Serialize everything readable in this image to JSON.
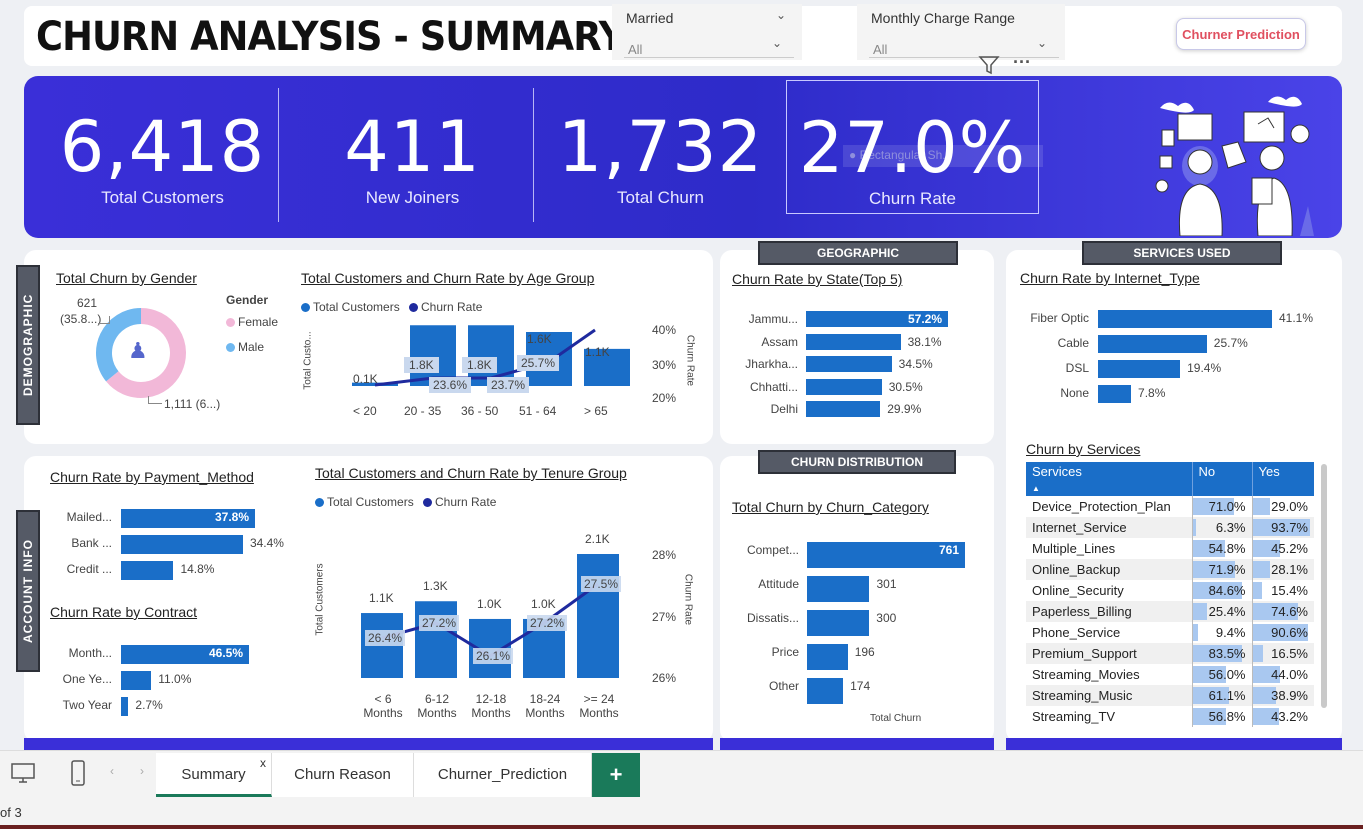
{
  "header": {
    "title": "CHURN ANALYSIS - SUMMARY",
    "slicers": [
      {
        "label": "Married",
        "value": "All"
      },
      {
        "label": "Monthly Charge Range",
        "value": "All"
      }
    ],
    "prediction_button": "Churner Prediction",
    "toolbar_more": "···"
  },
  "kpis": [
    {
      "value": "6,418",
      "label": "Total Customers"
    },
    {
      "value": "411",
      "label": "New Joiners"
    },
    {
      "value": "1,732",
      "label": "Total Churn"
    },
    {
      "value": "27.0%",
      "label": "Churn Rate"
    }
  ],
  "ghost_text": "Rectangular Sh...",
  "sections": {
    "demographic": "DEMOGRAPHIC",
    "account_info": "ACCOUNT INFO",
    "geographic": "GEOGRAPHIC",
    "services_used": "SERVICES USED",
    "churn_distribution": "CHURN DISTRIBUTION"
  },
  "gender_chart": {
    "title": "Total Churn by Gender",
    "legend_title": "Gender",
    "series": [
      {
        "name": "Female",
        "value": 1111,
        "label": "1,111 (6...)",
        "color": "#f2b8d8"
      },
      {
        "name": "Male",
        "value": 621,
        "label_line1": "621",
        "label_line2": "(35.8...)",
        "color": "#6fb8f0"
      }
    ]
  },
  "age_chart": {
    "title": "Total Customers and Churn Rate by Age Group",
    "legend": [
      "Total Customers",
      "Churn Rate"
    ],
    "ylabel_left": "Total Custo...",
    "ylabel_right": "Churn Rate",
    "right_ticks": [
      "40%",
      "30%",
      "20%"
    ],
    "categories": [
      "< 20",
      "20 - 35",
      "36 - 50",
      "51 - 64",
      "> 65"
    ],
    "bars": [
      0.1,
      1.8,
      1.8,
      1.6,
      1.1
    ],
    "bar_labels": [
      "0.1K",
      "1.8K",
      "1.8K",
      "1.6K",
      "1.1K"
    ],
    "rate_labels": [
      "",
      "23.6%",
      "23.7%",
      "25.7%",
      ""
    ]
  },
  "state_chart": {
    "title": "Churn Rate by State(Top 5)",
    "categories": [
      "Jammu...",
      "Assam",
      "Jharkha...",
      "Chhatti...",
      "Delhi"
    ],
    "values": [
      57.2,
      38.1,
      34.5,
      30.5,
      29.9
    ],
    "labels": [
      "57.2%",
      "38.1%",
      "34.5%",
      "30.5%",
      "29.9%"
    ]
  },
  "internet_chart": {
    "title": "Churn Rate by Internet_Type",
    "categories": [
      "Fiber Optic",
      "Cable",
      "DSL",
      "None"
    ],
    "values": [
      41.1,
      25.7,
      19.4,
      7.8
    ],
    "labels": [
      "41.1%",
      "25.7%",
      "19.4%",
      "7.8%"
    ]
  },
  "payment_chart": {
    "title": "Churn Rate by Payment_Method",
    "categories": [
      "Mailed...",
      "Bank ...",
      "Credit ..."
    ],
    "values": [
      37.8,
      34.4,
      14.8
    ],
    "labels": [
      "37.8%",
      "34.4%",
      "14.8%"
    ]
  },
  "contract_chart": {
    "title": "Churn Rate by Contract",
    "categories": [
      "Month...",
      "One Ye...",
      "Two Year"
    ],
    "values": [
      46.5,
      11.0,
      2.7
    ],
    "labels": [
      "46.5%",
      "11.0%",
      "2.7%"
    ]
  },
  "tenure_chart": {
    "title": "Total Customers and Churn Rate by Tenure Group",
    "legend": [
      "Total Customers",
      "Churn Rate"
    ],
    "ylabel_left": "Total Customers",
    "ylabel_right": "Churn Rate",
    "right_ticks": [
      "28%",
      "27%",
      "26%"
    ],
    "categories": [
      [
        "< 6",
        "Months"
      ],
      [
        "6-12",
        "Months"
      ],
      [
        "12-18",
        "Months"
      ],
      [
        "18-24",
        "Months"
      ],
      [
        ">= 24",
        "Months"
      ]
    ],
    "bars": [
      1.1,
      1.3,
      1.0,
      1.0,
      2.1
    ],
    "bar_labels": [
      "1.1K",
      "1.3K",
      "1.0K",
      "1.0K",
      "2.1K"
    ],
    "rate_labels": [
      "26.4%",
      "27.2%",
      "26.1%",
      "27.2%",
      "27.5%"
    ]
  },
  "category_chart": {
    "title": "Total Churn by Churn_Category",
    "xlabel": "Total Churn",
    "categories": [
      "Compet...",
      "Attitude",
      "Dissatis...",
      "Price",
      "Other"
    ],
    "values": [
      761,
      301,
      300,
      196,
      174
    ],
    "labels": [
      "761",
      "301",
      "300",
      "196",
      "174"
    ]
  },
  "services_table": {
    "title": "Churn by Services",
    "headers": [
      "Services",
      "No",
      "Yes"
    ],
    "rows": [
      {
        "name": "Device_Protection_Plan",
        "no": "71.0%",
        "yes": "29.0%",
        "no_v": 71.0,
        "yes_v": 29.0
      },
      {
        "name": "Internet_Service",
        "no": "6.3%",
        "yes": "93.7%",
        "no_v": 6.3,
        "yes_v": 93.7
      },
      {
        "name": "Multiple_Lines",
        "no": "54.8%",
        "yes": "45.2%",
        "no_v": 54.8,
        "yes_v": 45.2
      },
      {
        "name": "Online_Backup",
        "no": "71.9%",
        "yes": "28.1%",
        "no_v": 71.9,
        "yes_v": 28.1
      },
      {
        "name": "Online_Security",
        "no": "84.6%",
        "yes": "15.4%",
        "no_v": 84.6,
        "yes_v": 15.4
      },
      {
        "name": "Paperless_Billing",
        "no": "25.4%",
        "yes": "74.6%",
        "no_v": 25.4,
        "yes_v": 74.6
      },
      {
        "name": "Phone_Service",
        "no": "9.4%",
        "yes": "90.6%",
        "no_v": 9.4,
        "yes_v": 90.6
      },
      {
        "name": "Premium_Support",
        "no": "83.5%",
        "yes": "16.5%",
        "no_v": 83.5,
        "yes_v": 16.5
      },
      {
        "name": "Streaming_Movies",
        "no": "56.0%",
        "yes": "44.0%",
        "no_v": 56.0,
        "yes_v": 44.0
      },
      {
        "name": "Streaming_Music",
        "no": "61.1%",
        "yes": "38.9%",
        "no_v": 61.1,
        "yes_v": 38.9
      },
      {
        "name": "Streaming_TV",
        "no": "56.8%",
        "yes": "43.2%",
        "no_v": 56.8,
        "yes_v": 43.2
      }
    ]
  },
  "tabs": {
    "items": [
      "Summary",
      "Churn Reason",
      "Churner_Prediction"
    ],
    "active": 0,
    "close_glyph": "x",
    "add_glyph": "+"
  },
  "status": {
    "page_text": "of 3"
  },
  "colors": {
    "accent": "#1a6ec8",
    "band": "#3a2fd8",
    "line": "#1f2a9e",
    "female": "#f2b8d8",
    "male": "#6fb8f0"
  }
}
